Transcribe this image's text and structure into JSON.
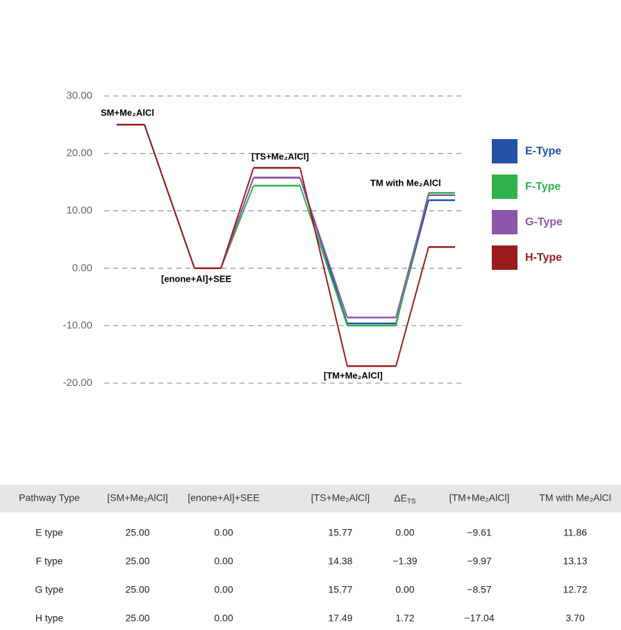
{
  "chart_data": {
    "type": "energy",
    "categories": [
      "SM+Me₂AlCl",
      "[enone+Al]+SEE",
      "[TS+Me₂AlCl]",
      "[TM+Me₂AlCl]",
      "TM with Me₂AlCl"
    ],
    "series": [
      {
        "name": "E-Type",
        "color": "#2352a6",
        "values": [
          25,
          0,
          15.77,
          -9.61,
          11.86
        ]
      },
      {
        "name": "F-Type",
        "color": "#2fb34a",
        "values": [
          25,
          0,
          14.38,
          -9.97,
          13.13
        ]
      },
      {
        "name": "G-Type",
        "color": "#8e56a8",
        "values": [
          25,
          0,
          15.77,
          -8.57,
          12.72
        ]
      },
      {
        "name": "H-Type",
        "color": "#9b1c1c",
        "values": [
          25,
          0,
          17.49,
          -17.04,
          3.7
        ]
      }
    ],
    "ylim": [
      -20,
      30
    ],
    "yticks": [
      {
        "value": -20,
        "label": "-20.00"
      },
      {
        "value": -10,
        "label": "-10.00"
      },
      {
        "value": 0,
        "label": "0.00"
      },
      {
        "value": 10,
        "label": "10.00"
      },
      {
        "value": 20,
        "label": "20.00"
      },
      {
        "value": 30,
        "label": "30.00"
      }
    ],
    "grid": true
  },
  "table": {
    "header": [
      "Pathway Type",
      "[SM+Me₂AlCl]",
      "[enone+Al]+SEE",
      "[TS+Me₂AlCl]",
      [
        "ΔE",
        "TS"
      ],
      "[TM+Me₂AlCl]",
      "TM with Me₂AlCl"
    ],
    "rows": [
      [
        "E type",
        "25.00",
        "0.00",
        "15.77",
        "0.00",
        "−9.61",
        "11.86"
      ],
      [
        "F type",
        "25.00",
        "0.00",
        "14.38",
        "−1.39",
        "−9.97",
        "13.13"
      ],
      [
        "G type",
        "25.00",
        "0.00",
        "15.77",
        "0.00",
        "−8.57",
        "12.72"
      ],
      [
        "H type",
        "25.00",
        "0.00",
        "17.49",
        "1.72",
        "−17.04",
        "3.70"
      ]
    ]
  }
}
